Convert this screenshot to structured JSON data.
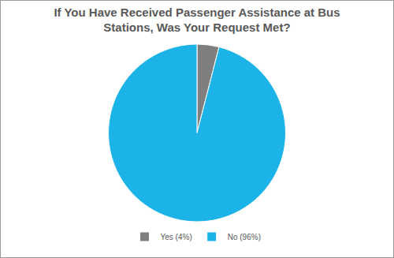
{
  "chart_data": {
    "type": "pie",
    "title": "If You Have Received Passenger Assistance at Bus Stations, Was Your Request Met?",
    "categories": [
      "Yes (4%)",
      "No (96%)"
    ],
    "values": [
      4,
      96
    ],
    "colors": [
      "#7f7f7f",
      "#1cb4e8"
    ],
    "legend": "bottom"
  }
}
